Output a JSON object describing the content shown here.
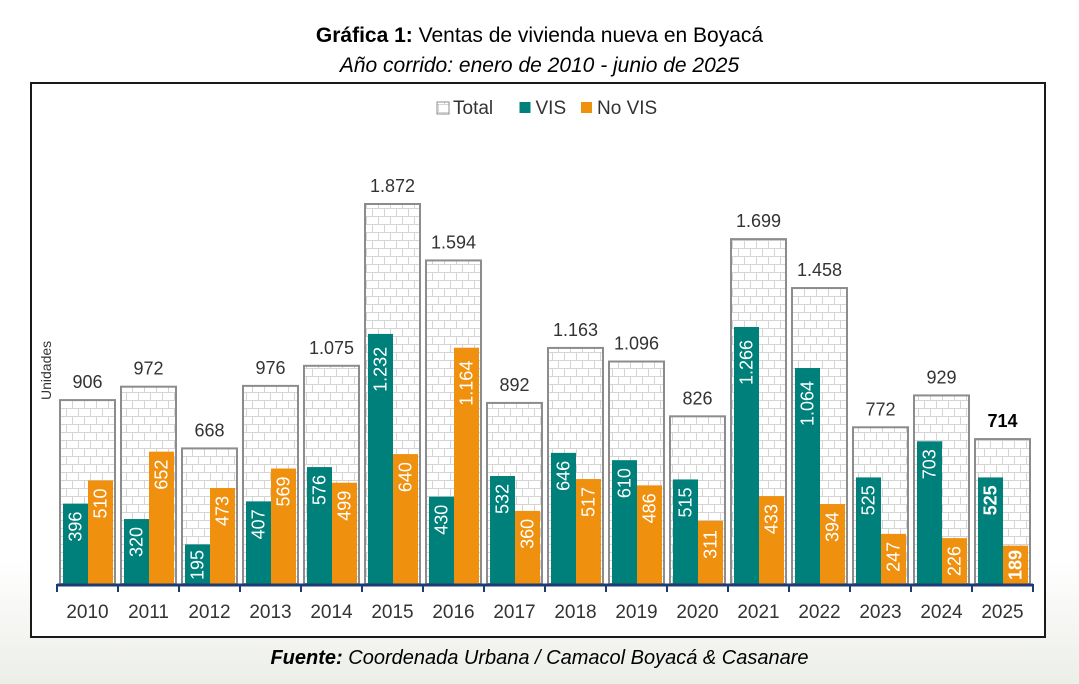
{
  "chart_data": {
    "type": "bar",
    "title_bold": "Gráfica 1:",
    "title": "Ventas de vivienda nueva en Boyacá",
    "subtitle": "Año corrido: enero de 2010 - junio de 2025",
    "xlabel": "",
    "ylabel": "Unidades",
    "ylim": [
      0,
      2300
    ],
    "grid": false,
    "legend_position": "top-center",
    "categories": [
      "2010",
      "2011",
      "2012",
      "2013",
      "2014",
      "2015",
      "2016",
      "2017",
      "2018",
      "2019",
      "2020",
      "2021",
      "2022",
      "2023",
      "2024",
      "2025"
    ],
    "series": [
      {
        "name": "Total",
        "color": "#ffffff",
        "pattern": "brick",
        "values": [
          906,
          972,
          668,
          976,
          1075,
          1872,
          1594,
          892,
          1163,
          1096,
          826,
          1699,
          1458,
          772,
          929,
          714
        ],
        "labels": [
          "906",
          "972",
          "668",
          "976",
          "1.075",
          "1.872",
          "1.594",
          "892",
          "1.163",
          "1.096",
          "826",
          "1.699",
          "1.458",
          "772",
          "929",
          "714"
        ]
      },
      {
        "name": "VIS",
        "color": "#00807a",
        "values": [
          396,
          320,
          195,
          407,
          576,
          1232,
          430,
          532,
          646,
          610,
          515,
          1266,
          1064,
          525,
          703,
          525
        ],
        "labels": [
          "396",
          "320",
          "195",
          "407",
          "576",
          "1.232",
          "430",
          "532",
          "646",
          "610",
          "515",
          "1.266",
          "1.064",
          "525",
          "703",
          "525"
        ]
      },
      {
        "name": "No VIS",
        "color": "#f0900f",
        "values": [
          510,
          652,
          473,
          569,
          499,
          640,
          1164,
          360,
          517,
          486,
          311,
          433,
          394,
          247,
          226,
          189
        ],
        "labels": [
          "510",
          "652",
          "473",
          "569",
          "499",
          "640",
          "1.164",
          "360",
          "517",
          "486",
          "311",
          "433",
          "394",
          "247",
          "226",
          "189"
        ]
      }
    ],
    "highlight_category": "2025"
  },
  "source_bold": "Fuente:",
  "source_text": "Coordenada Urbana / Camacol Boyacá & Casanare"
}
